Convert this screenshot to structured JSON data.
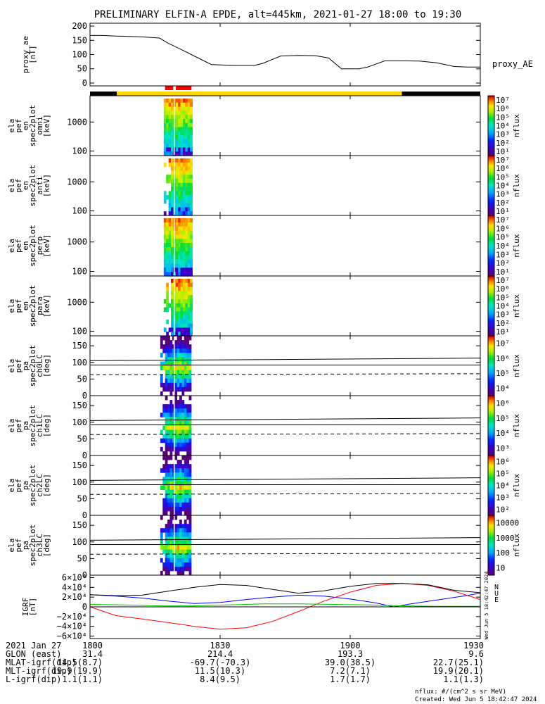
{
  "title": "PRELIMINARY ELFIN-A EPDE, alt=445km, 2021-01-27 18:00 to 19:30",
  "time_axis": {
    "range": [
      0,
      90
    ],
    "ticks": [
      {
        "t": 0,
        "label": "1800"
      },
      {
        "t": 30,
        "label": "1830"
      },
      {
        "t": 60,
        "label": "1900"
      },
      {
        "t": 90,
        "label": "1930"
      }
    ]
  },
  "bars": {
    "red_segments": [
      [
        17.3,
        19.2
      ],
      [
        19.8,
        23.4
      ]
    ],
    "yellow_segment": [
      6.2,
      71.9
    ],
    "black_segments": [
      [
        0,
        6.2
      ],
      [
        71.9,
        90
      ]
    ]
  },
  "chart_data": [
    {
      "type": "line",
      "name": "proxy_ae",
      "ylabel": [
        "proxy_ae",
        "[nT]"
      ],
      "legend": "proxy_AE",
      "ylim": [
        -10,
        210
      ],
      "yticks": [
        {
          "v": 0,
          "label": "0"
        },
        {
          "v": 50,
          "label": "50"
        },
        {
          "v": 100,
          "label": "100"
        },
        {
          "v": 150,
          "label": "150"
        },
        {
          "v": 200,
          "label": "200"
        }
      ],
      "series": [
        {
          "name": "proxy_AE",
          "color": "#000000",
          "x": [
            0,
            3,
            6,
            12,
            16,
            18,
            21,
            24,
            28,
            33,
            38,
            40,
            44,
            48,
            52,
            55,
            58,
            62,
            64,
            68,
            72,
            76,
            80,
            84,
            87,
            90
          ],
          "y": [
            167,
            167,
            165,
            162,
            158,
            140,
            118,
            95,
            65,
            62,
            62,
            70,
            95,
            97,
            96,
            88,
            50,
            50,
            56,
            78,
            78,
            77,
            71,
            58,
            56,
            56
          ]
        }
      ]
    },
    {
      "type": "heatmap",
      "name": "spectrogram-omni",
      "ylabel": [
        "ela",
        "pef",
        "en",
        "spec2plot",
        "omni",
        "[keV]"
      ],
      "yscale": "log",
      "yticks": [
        {
          "v": 100,
          "label": "100"
        },
        {
          "v": 1000,
          "label": "1000"
        }
      ],
      "colorbar": {
        "ticks": [
          "10¹",
          "10²",
          "10³",
          "10⁴",
          "10⁵",
          "10⁶",
          "10⁷"
        ],
        "label": "nflux"
      }
    },
    {
      "type": "heatmap",
      "name": "spectrogram-anti",
      "ylabel": [
        "ela",
        "pef",
        "en",
        "spec2plot",
        "anti",
        "[keV]"
      ],
      "yscale": "log",
      "yticks": [
        {
          "v": 100,
          "label": "100"
        },
        {
          "v": 1000,
          "label": "1000"
        }
      ],
      "colorbar": {
        "ticks": [
          "10¹",
          "10²",
          "10³",
          "10⁴",
          "10⁵",
          "10⁶",
          "10⁷"
        ],
        "label": "nflux"
      }
    },
    {
      "type": "heatmap",
      "name": "spectrogram-perp",
      "ylabel": [
        "ela",
        "pef",
        "en",
        "spec2plot",
        "perp",
        "[keV]"
      ],
      "yscale": "log",
      "yticks": [
        {
          "v": 100,
          "label": "100"
        },
        {
          "v": 1000,
          "label": "1000"
        }
      ],
      "colorbar": {
        "ticks": [
          "10¹",
          "10²",
          "10³",
          "10⁴",
          "10⁵",
          "10⁶",
          "10⁷"
        ],
        "label": "nflux"
      }
    },
    {
      "type": "heatmap",
      "name": "spectrogram-para",
      "ylabel": [
        "ela",
        "pef",
        "en",
        "spec2plot",
        "para",
        "[keV]"
      ],
      "yscale": "log",
      "yticks": [
        {
          "v": 100,
          "label": "100"
        },
        {
          "v": 1000,
          "label": "1000"
        }
      ],
      "colorbar": {
        "ticks": [
          "10¹",
          "10²",
          "10³",
          "10⁴",
          "10⁵",
          "10⁶",
          "10⁷"
        ],
        "label": "nflux"
      }
    },
    {
      "type": "heatmap",
      "name": "pitch-angle-ch0",
      "ylabel": [
        "ela",
        "pef",
        "pa",
        "spec2plot",
        "ch0LC",
        "[deg]"
      ],
      "yscale": "linear",
      "ylim": [
        0,
        180
      ],
      "yticks": [
        {
          "v": 0,
          "label": "0"
        },
        {
          "v": 50,
          "label": "50"
        },
        {
          "v": 100,
          "label": "100"
        },
        {
          "v": 150,
          "label": "150"
        }
      ],
      "colorbar": {
        "ticks": [
          "10⁴",
          "10⁵",
          "10⁶",
          "10⁷"
        ],
        "label": "nflux"
      }
    },
    {
      "type": "heatmap",
      "name": "pitch-angle-ch1",
      "ylabel": [
        "ela",
        "pef",
        "pa",
        "spec2plot",
        "ch1LC",
        "[deg]"
      ],
      "yscale": "linear",
      "ylim": [
        0,
        180
      ],
      "yticks": [
        {
          "v": 0,
          "label": "0"
        },
        {
          "v": 50,
          "label": "50"
        },
        {
          "v": 100,
          "label": "100"
        },
        {
          "v": 150,
          "label": "150"
        }
      ],
      "colorbar": {
        "ticks": [
          "10³",
          "10⁴",
          "10⁵",
          "10⁶"
        ],
        "label": "nflux"
      }
    },
    {
      "type": "heatmap",
      "name": "pitch-angle-ch2",
      "ylabel": [
        "ela",
        "pef",
        "pa",
        "spec2plot",
        "ch2LC",
        "[deg]"
      ],
      "yscale": "linear",
      "ylim": [
        0,
        180
      ],
      "yticks": [
        {
          "v": 0,
          "label": "0"
        },
        {
          "v": 50,
          "label": "50"
        },
        {
          "v": 100,
          "label": "100"
        },
        {
          "v": 150,
          "label": "150"
        }
      ],
      "colorbar": {
        "ticks": [
          "10²",
          "10³",
          "10⁴",
          "10⁵",
          "10⁶"
        ],
        "label": "nflux"
      }
    },
    {
      "type": "heatmap",
      "name": "pitch-angle-ch3",
      "ylabel": [
        "ela",
        "pef",
        "pa",
        "spec2plot",
        "ch3LC",
        "[deg]"
      ],
      "yscale": "linear",
      "ylim": [
        0,
        180
      ],
      "yticks": [
        {
          "v": 0,
          "label": "0"
        },
        {
          "v": 50,
          "label": "50"
        },
        {
          "v": 100,
          "label": "100"
        },
        {
          "v": 150,
          "label": "150"
        }
      ],
      "colorbar": {
        "ticks": [
          "10",
          "100",
          "1000",
          "10000"
        ],
        "label": "nflux"
      }
    },
    {
      "type": "line",
      "name": "igrf",
      "ylabel": [
        "IGRF",
        "[nT]"
      ],
      "ylim": [
        -65000,
        65000
      ],
      "yticks": [
        {
          "v": 60000,
          "label": "6×10⁴"
        },
        {
          "v": 40000,
          "label": "4×10⁴"
        },
        {
          "v": 20000,
          "label": "2×10⁴"
        },
        {
          "v": 0,
          "label": "0"
        },
        {
          "v": -20000,
          "label": "−2×10⁴"
        },
        {
          "v": -40000,
          "label": "−4×10⁴"
        },
        {
          "v": -60000,
          "label": "−6×10⁴"
        }
      ],
      "legend_labels": [
        {
          "text": "N",
          "color": "#0000ff"
        },
        {
          "text": "U",
          "color": "#ff0000"
        },
        {
          "text": "E",
          "color": "#00c000"
        }
      ],
      "series": [
        {
          "name": "N",
          "color": "#0000ff",
          "x": [
            0,
            6,
            12,
            18,
            24,
            30,
            36,
            42,
            48,
            54,
            60,
            66,
            70,
            74,
            80,
            86,
            90
          ],
          "y": [
            25000,
            22000,
            18000,
            12000,
            7000,
            9000,
            15000,
            20000,
            24000,
            22000,
            16000,
            8000,
            0,
            6000,
            14000,
            22000,
            28000
          ]
        },
        {
          "name": "U",
          "color": "#ff0000",
          "x": [
            0,
            6,
            12,
            18,
            24,
            30,
            36,
            42,
            48,
            54,
            60,
            66,
            72,
            78,
            84,
            90
          ],
          "y": [
            0,
            -18000,
            -25000,
            -32000,
            -40000,
            -46000,
            -43000,
            -30000,
            -10000,
            12000,
            30000,
            44000,
            48000,
            44000,
            32000,
            15000
          ]
        },
        {
          "name": "E",
          "color": "#00c000",
          "x": [
            0,
            8,
            16,
            24,
            32,
            40,
            48,
            56,
            64,
            72,
            80,
            90
          ],
          "y": [
            5000,
            4000,
            2000,
            2000,
            4000,
            6000,
            6000,
            5000,
            4000,
            2000,
            1000,
            1000
          ]
        },
        {
          "name": "Total",
          "color": "#000000",
          "x": [
            0,
            6,
            12,
            18,
            24,
            30,
            36,
            42,
            48,
            54,
            60,
            66,
            72,
            78,
            84,
            90
          ],
          "y": [
            25000,
            23000,
            24000,
            32000,
            40000,
            46000,
            44000,
            36000,
            28000,
            33000,
            42000,
            48000,
            48000,
            45000,
            34000,
            29000
          ]
        }
      ]
    }
  ],
  "orbit_table": {
    "rows": [
      {
        "label": "2021 Jan 27",
        "values": [
          "1800",
          "1830",
          "1900",
          "1930"
        ]
      },
      {
        "label": "GLON (east)",
        "values": [
          "31.4",
          "214.4",
          "193.3",
          "9.6"
        ]
      },
      {
        "label": "MLAT-igrf(dip)",
        "values": [
          "14.5(8.7)",
          "-69.7(-70.3)",
          "39.0(38.5)",
          "22.7(25.1)"
        ]
      },
      {
        "label": "MLT-igrf(dip)",
        "values": [
          "19.9(19.9)",
          "11.5(10.3)",
          "7.2(7.1)",
          "19.9(20.1)"
        ]
      },
      {
        "label": "L-igrf(dip)",
        "values": [
          "1.1(1.1)",
          "8.4(9.5)",
          "1.7(1.7)",
          "1.1(1.3)"
        ]
      }
    ]
  },
  "footer": {
    "units": "nflux: #/(cm^2 s sr MeV)",
    "created": "Created: Wed Jun  5 18:42:47 2024",
    "side_stamp": "Wed Jun  5 18:42:47 2024"
  }
}
